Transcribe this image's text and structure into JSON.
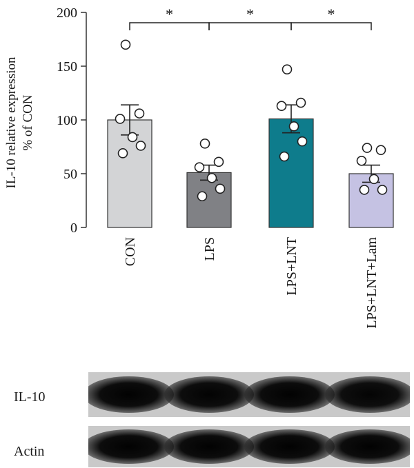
{
  "chart_data": {
    "type": "bar",
    "ylabel_line1": "IL-10 relative expression",
    "ylabel_line2": "% of CON",
    "ylim": [
      0,
      200
    ],
    "yticks": [
      0,
      50,
      100,
      150,
      200
    ],
    "categories": [
      "CON",
      "LPS",
      "LPS+LNT",
      "LPS+LNT+Lam"
    ],
    "values": [
      100,
      51,
      101,
      50
    ],
    "errors": [
      14,
      7,
      13,
      8
    ],
    "colors": [
      "#d3d4d6",
      "#808185",
      "#0e7c8c",
      "#c5c2e3"
    ],
    "points": [
      [
        170,
        106,
        101,
        84,
        76,
        69
      ],
      [
        78,
        61,
        56,
        46,
        36,
        29
      ],
      [
        147,
        116,
        113,
        94,
        80,
        66
      ],
      [
        74,
        72,
        62,
        45,
        35,
        35
      ]
    ],
    "significance": [
      {
        "from": 0,
        "to": 1,
        "label": "*"
      },
      {
        "from": 1,
        "to": 2,
        "label": "*"
      },
      {
        "from": 2,
        "to": 3,
        "label": "*"
      }
    ]
  },
  "blot": {
    "rows": [
      {
        "label": "IL-10",
        "band_darkness": [
          0.93,
          0.9,
          0.95,
          0.88
        ]
      },
      {
        "label": "Actin",
        "band_darkness": [
          0.95,
          0.95,
          0.95,
          0.95
        ]
      }
    ]
  }
}
